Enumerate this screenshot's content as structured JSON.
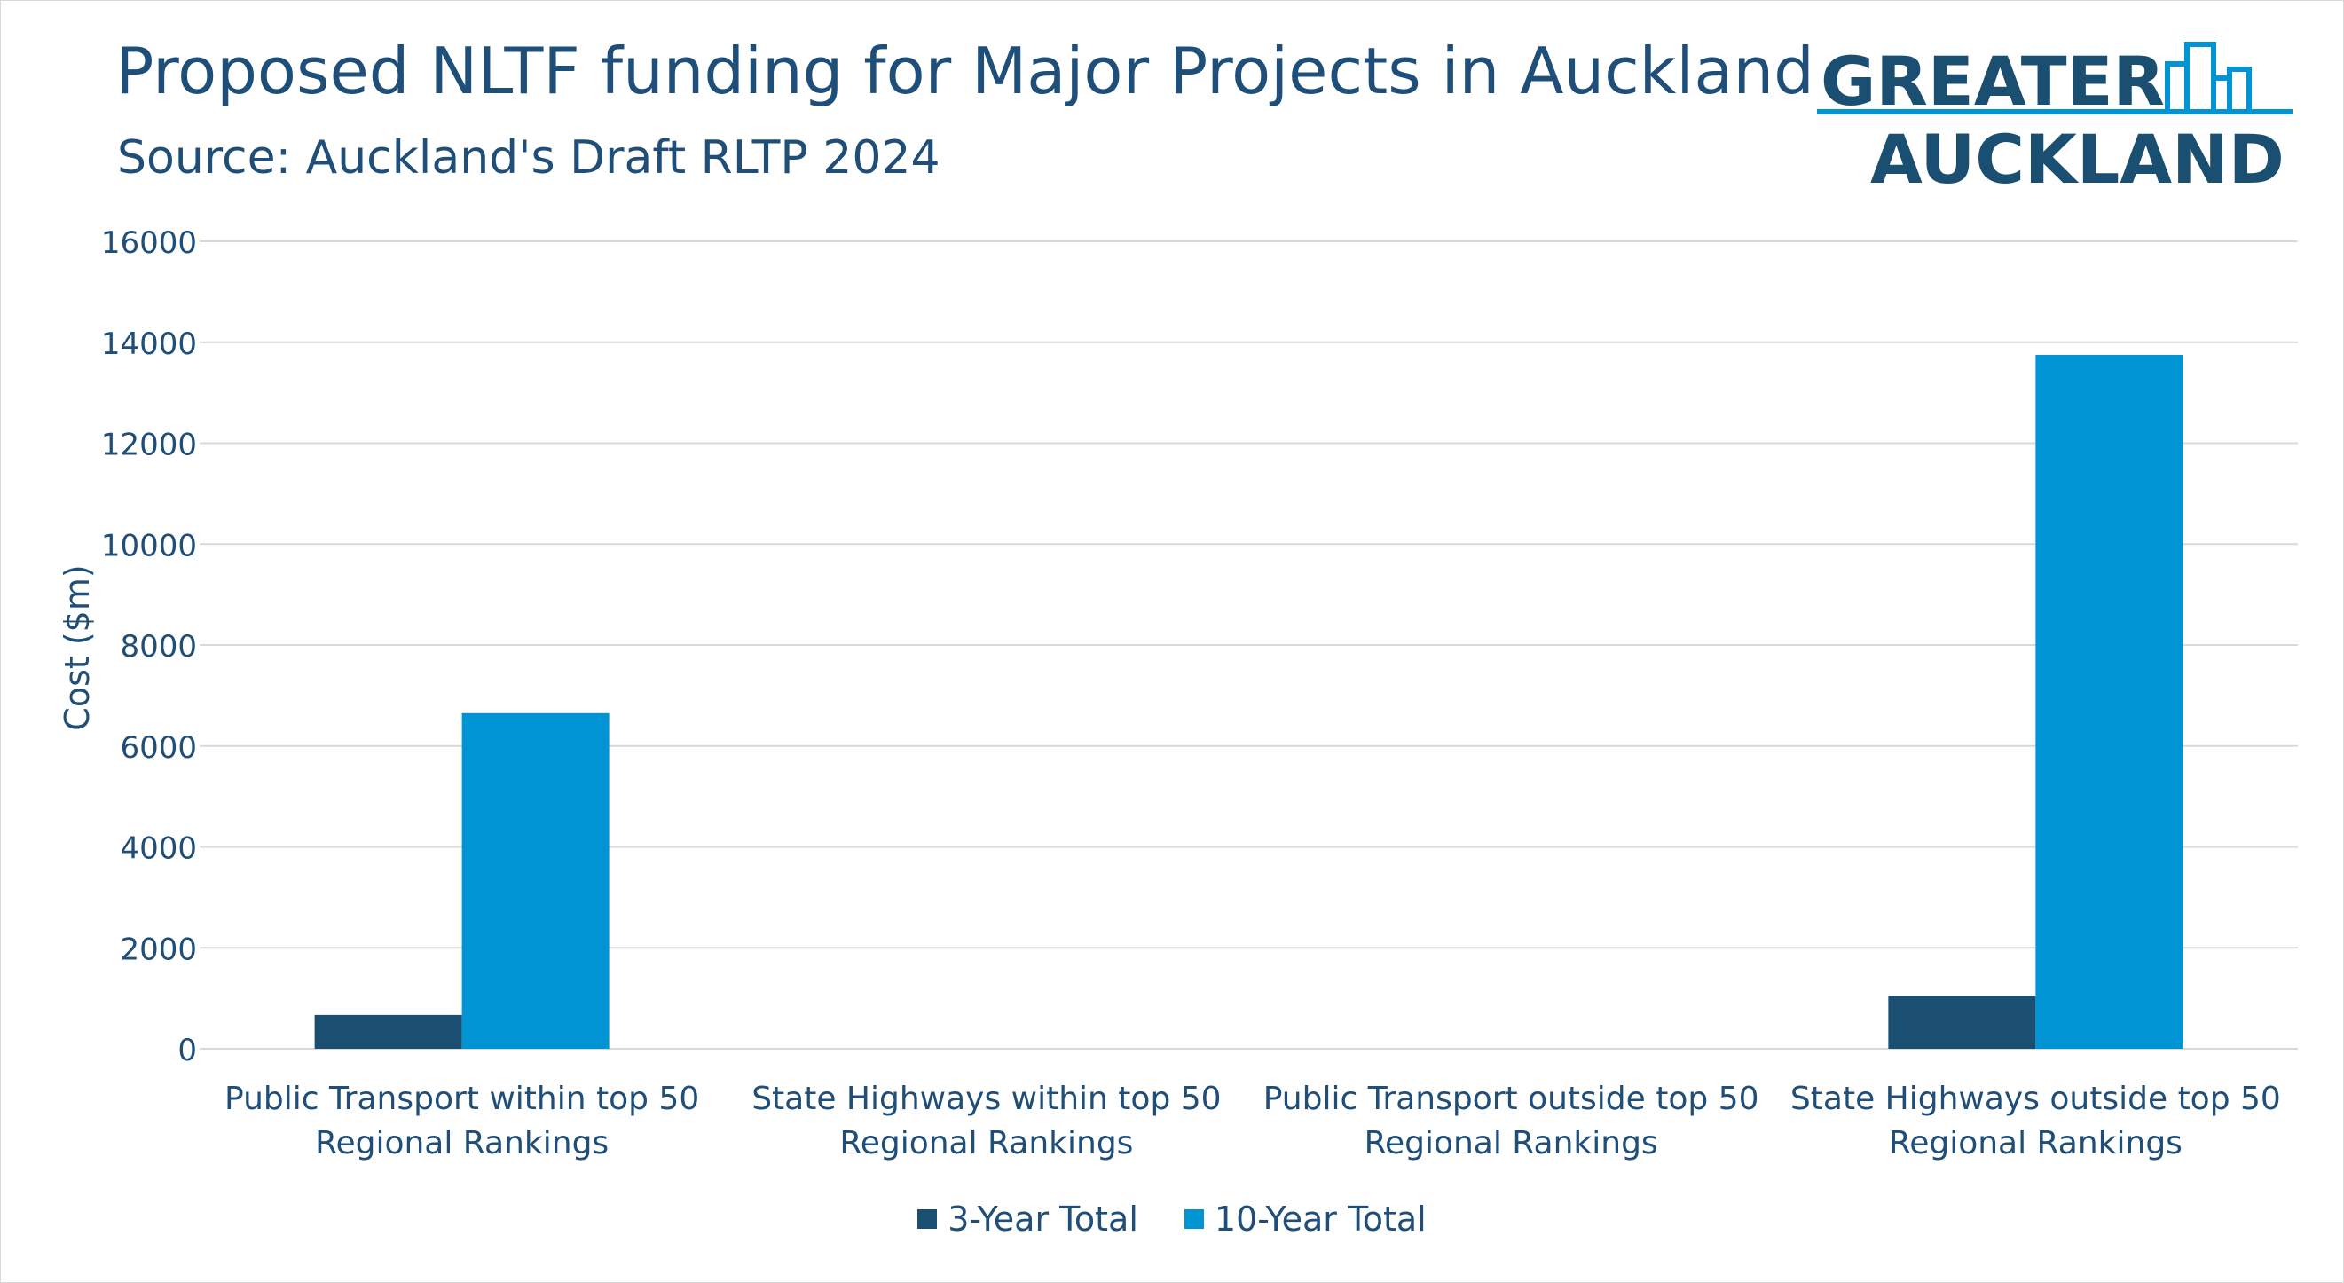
{
  "colors": {
    "series_dark": "#1b4f72",
    "series_light": "#0094d4",
    "text": "#1f4e79",
    "grid": "#d9d9d9"
  },
  "logo": {
    "line1": "GREATER",
    "line2": "AUCKLAND"
  },
  "chart_data": {
    "type": "bar",
    "title": "Proposed NLTF funding for Major Projects in Auckland",
    "subtitle": "Source: Auckland's Draft RLTP 2024",
    "xlabel": "",
    "ylabel": "Cost ($m)",
    "ylim": [
      0,
      16000
    ],
    "yticks": [
      0,
      2000,
      4000,
      6000,
      8000,
      10000,
      12000,
      14000,
      16000
    ],
    "grid": true,
    "legend_position": "bottom",
    "categories": [
      [
        "Public Transport within top 50",
        "Regional Rankings"
      ],
      [
        "State Highways within top 50",
        "Regional Rankings"
      ],
      [
        "Public Transport outside top 50",
        "Regional Rankings"
      ],
      [
        "State Highways outside top 50",
        "Regional Rankings"
      ]
    ],
    "series": [
      {
        "name": "3-Year Total",
        "values": [
          670,
          0,
          0,
          1050
        ],
        "color": "#1b4f72"
      },
      {
        "name": "10-Year Total",
        "values": [
          6650,
          0,
          0,
          13750
        ],
        "color": "#0094d4"
      }
    ]
  }
}
